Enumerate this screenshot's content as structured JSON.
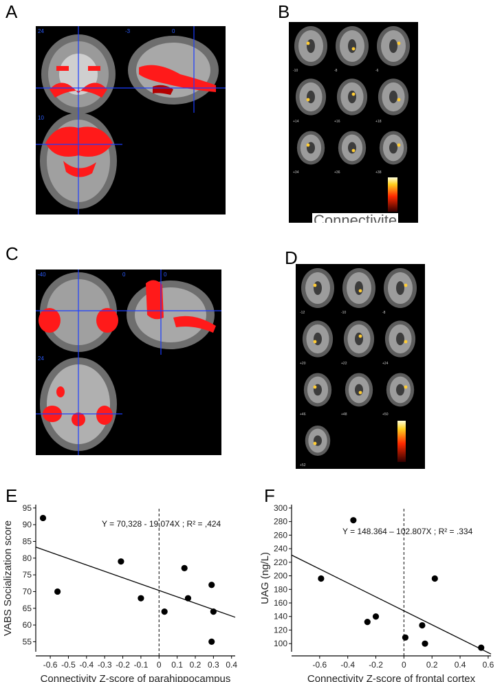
{
  "panels": {
    "a": "A",
    "b": "B",
    "c": "C",
    "d": "D",
    "e": "E",
    "f": "F"
  },
  "brain_a": {
    "coronal_label": "24",
    "sagittal_label_1": "-3",
    "sagittal_label_2": "0",
    "axial_label": "10"
  },
  "brain_b": {
    "slice_labels": [
      "-10",
      "-8",
      "-6",
      "+14",
      "+16",
      "+18",
      "+34",
      "+36",
      "+38"
    ],
    "footer_text": "Connectivite"
  },
  "brain_c": {
    "coronal_label": "-40",
    "sagittal_label_1": "0",
    "sagittal_label_2": "0",
    "axial_label": "24"
  },
  "brain_d": {
    "slice_labels": [
      "-12",
      "-10",
      "-8",
      "+20",
      "+22",
      "+24",
      "+46",
      "+48",
      "+50",
      "+52"
    ]
  },
  "chart_data": [
    {
      "type": "scatter",
      "panel": "E",
      "xlabel": "Connectivity Z-score of parahippocampus",
      "ylabel": "VABS Socialization score",
      "annotation": "Y = 70,328 - 19,074X ; R² = ,424",
      "xlim": [
        -0.68,
        0.42
      ],
      "ylim": [
        52,
        96
      ],
      "xticks": [
        -0.6,
        -0.5,
        -0.4,
        -0.3,
        -0.2,
        -0.1,
        0,
        0.1,
        0.2,
        0.3,
        0.4
      ],
      "xtick_labels": [
        "-0.6",
        "-0.5",
        "-0.4",
        "-0.3",
        "-0.2",
        "-0.1",
        "0",
        "0.1",
        "0.2",
        "0.3",
        "0.4"
      ],
      "yticks": [
        55,
        60,
        65,
        70,
        75,
        80,
        85,
        90,
        95
      ],
      "ytick_labels": [
        "55",
        "60",
        "65",
        "70",
        "75",
        "80",
        "85",
        "90",
        "95"
      ],
      "points": [
        {
          "x": -0.64,
          "y": 92
        },
        {
          "x": -0.56,
          "y": 70
        },
        {
          "x": -0.21,
          "y": 79
        },
        {
          "x": -0.1,
          "y": 68
        },
        {
          "x": 0.03,
          "y": 64
        },
        {
          "x": 0.14,
          "y": 77
        },
        {
          "x": 0.16,
          "y": 68
        },
        {
          "x": 0.29,
          "y": 72
        },
        {
          "x": 0.3,
          "y": 64
        },
        {
          "x": 0.29,
          "y": 55
        }
      ],
      "fit_line": {
        "intercept": 70.328,
        "slope": -19.074
      },
      "vline_x": 0,
      "grid": false
    },
    {
      "type": "scatter",
      "panel": "F",
      "xlabel": "Connectivity Z-score of frontal cortex",
      "ylabel": "UAG (ng/L)",
      "annotation": "Y = 148.364 – 102.807X ; R² = .334",
      "xlim": [
        -0.8,
        0.62
      ],
      "ylim": [
        88,
        305
      ],
      "xticks": [
        -0.6,
        -0.4,
        -0.2,
        0,
        0.2,
        0.4,
        0.6
      ],
      "xtick_labels": [
        "-0.6",
        "-0.4",
        "-0.2",
        "0",
        "0.2",
        "0.4",
        "0.6"
      ],
      "yticks": [
        100,
        120,
        140,
        160,
        180,
        200,
        220,
        240,
        260,
        280,
        300
      ],
      "ytick_labels": [
        "100",
        "120",
        "140",
        "160",
        "180",
        "200",
        "220",
        "240",
        "260",
        "280",
        "300"
      ],
      "points": [
        {
          "x": -0.36,
          "y": 282
        },
        {
          "x": -0.59,
          "y": 196
        },
        {
          "x": -0.2,
          "y": 140
        },
        {
          "x": -0.26,
          "y": 132
        },
        {
          "x": 0.01,
          "y": 109
        },
        {
          "x": 0.13,
          "y": 127
        },
        {
          "x": 0.15,
          "y": 100
        },
        {
          "x": 0.22,
          "y": 196
        },
        {
          "x": 0.55,
          "y": 94
        }
      ],
      "fit_line": {
        "intercept": 148.364,
        "slope": -102.807
      },
      "vline_x": 0,
      "grid": false
    }
  ],
  "colors": {
    "activation": "#ff1a1a",
    "crosshair": "#1a3cff",
    "background": "#000000",
    "hotspot": "#ffcc33"
  }
}
